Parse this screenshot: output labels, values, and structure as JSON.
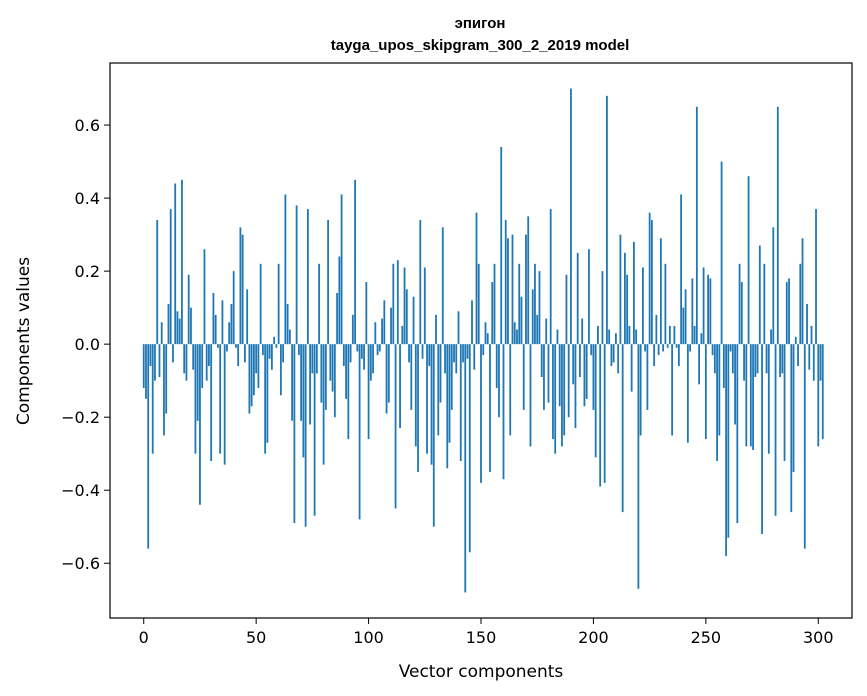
{
  "chart_data": {
    "type": "bar",
    "title_line1": "эпигон",
    "title_line2": "tayga_upos_skipgram_300_2_2019 model",
    "xlabel": "Vector components",
    "ylabel": "Components values",
    "xlim": [
      -15,
      315
    ],
    "ylim": [
      -0.75,
      0.77
    ],
    "xticks": [
      0,
      50,
      100,
      150,
      200,
      250,
      300
    ],
    "xtick_labels": [
      "0",
      "50",
      "100",
      "150",
      "200",
      "250",
      "300"
    ],
    "yticks": [
      -0.6,
      -0.4,
      -0.2,
      0.0,
      0.2,
      0.4,
      0.6
    ],
    "ytick_labels": [
      "−0.6",
      "−0.4",
      "−0.2",
      "0.0",
      "0.2",
      "0.4",
      "0.6"
    ],
    "bar_color": "#1f77b4",
    "grid": false,
    "values": [
      -0.12,
      -0.15,
      -0.56,
      -0.06,
      -0.3,
      -0.1,
      0.34,
      -0.09,
      0.06,
      -0.25,
      -0.19,
      0.11,
      0.37,
      -0.05,
      0.44,
      0.09,
      0.07,
      0.45,
      -0.08,
      -0.1,
      0.19,
      0.1,
      -0.07,
      -0.3,
      -0.21,
      -0.44,
      -0.12,
      0.26,
      -0.1,
      -0.06,
      -0.32,
      0.14,
      0.08,
      -0.01,
      -0.3,
      0.12,
      -0.33,
      -0.02,
      0.06,
      0.11,
      0.2,
      -0.01,
      -0.06,
      0.32,
      0.3,
      -0.05,
      0.15,
      -0.19,
      -0.17,
      -0.14,
      -0.08,
      -0.12,
      0.22,
      -0.03,
      -0.3,
      -0.27,
      -0.04,
      -0.07,
      0.02,
      -0.01,
      0.22,
      -0.14,
      -0.05,
      0.41,
      0.11,
      0.04,
      -0.21,
      -0.49,
      0.38,
      -0.03,
      -0.21,
      -0.31,
      -0.5,
      0.37,
      -0.22,
      -0.08,
      -0.47,
      -0.08,
      0.22,
      -0.16,
      -0.33,
      -0.18,
      0.34,
      -0.1,
      -0.13,
      -0.2,
      0.14,
      0.24,
      0.41,
      -0.06,
      -0.15,
      -0.26,
      -0.05,
      0.08,
      0.45,
      -0.02,
      -0.48,
      -0.04,
      -0.07,
      0.17,
      -0.26,
      -0.1,
      -0.08,
      0.06,
      -0.03,
      -0.02,
      0.07,
      0.12,
      -0.19,
      -0.16,
      0.1,
      0.22,
      -0.45,
      0.23,
      -0.23,
      0.05,
      0.21,
      0.15,
      -0.05,
      -0.18,
      0.13,
      -0.28,
      -0.35,
      0.34,
      -0.04,
      0.21,
      -0.3,
      -0.06,
      -0.33,
      -0.5,
      0.08,
      -0.25,
      -0.16,
      0.32,
      -0.08,
      -0.34,
      -0.27,
      -0.18,
      -0.05,
      -0.08,
      0.09,
      -0.32,
      -0.05,
      -0.68,
      -0.04,
      -0.57,
      0.12,
      -0.07,
      0.36,
      0.22,
      -0.38,
      -0.03,
      0.06,
      0.03,
      -0.35,
      0.17,
      0.22,
      -0.12,
      -0.2,
      0.54,
      -0.37,
      0.34,
      0.29,
      -0.25,
      0.3,
      0.06,
      0.04,
      0.22,
      0.13,
      -0.18,
      0.3,
      0.35,
      -0.28,
      0.15,
      0.22,
      0.08,
      0.2,
      -0.09,
      -0.18,
      0.07,
      -0.16,
      0.37,
      -0.26,
      -0.3,
      0.04,
      -0.17,
      -0.28,
      -0.25,
      0.19,
      -0.2,
      0.7,
      -0.11,
      -0.23,
      0.25,
      -0.09,
      0.07,
      -0.17,
      -0.15,
      0.26,
      -0.03,
      -0.18,
      -0.31,
      0.05,
      -0.39,
      0.2,
      -0.38,
      0.68,
      0.04,
      -0.06,
      -0.05,
      0.03,
      -0.08,
      0.3,
      -0.46,
      0.25,
      0.19,
      0.05,
      -0.13,
      0.28,
      0.04,
      -0.67,
      -0.25,
      0.21,
      -0.02,
      -0.18,
      0.36,
      0.34,
      -0.06,
      0.08,
      -0.03,
      0.29,
      -0.02,
      0.22,
      -0.01,
      0.05,
      -0.25,
      0.05,
      -0.01,
      -0.06,
      0.41,
      0.1,
      0.15,
      -0.27,
      -0.02,
      0.18,
      0.05,
      0.65,
      -0.11,
      0.03,
      0.21,
      -0.26,
      0.19,
      0.18,
      -0.03,
      -0.08,
      -0.32,
      -0.25,
      0.5,
      -0.12,
      -0.58,
      -0.53,
      -0.02,
      -0.08,
      -0.22,
      -0.49,
      0.22,
      0.17,
      -0.1,
      -0.28,
      0.46,
      -0.28,
      -0.29,
      -0.09,
      -0.08,
      0.27,
      -0.52,
      0.22,
      -0.08,
      -0.3,
      0.04,
      0.32,
      -0.47,
      0.65,
      -0.09,
      -0.08,
      -0.32,
      0.17,
      0.18,
      -0.46,
      -0.35,
      0.02,
      -0.06,
      0.22,
      0.29,
      -0.56,
      0.11,
      -0.07,
      0.05,
      -0.1,
      0.37,
      -0.28,
      -0.1,
      -0.26
    ]
  }
}
